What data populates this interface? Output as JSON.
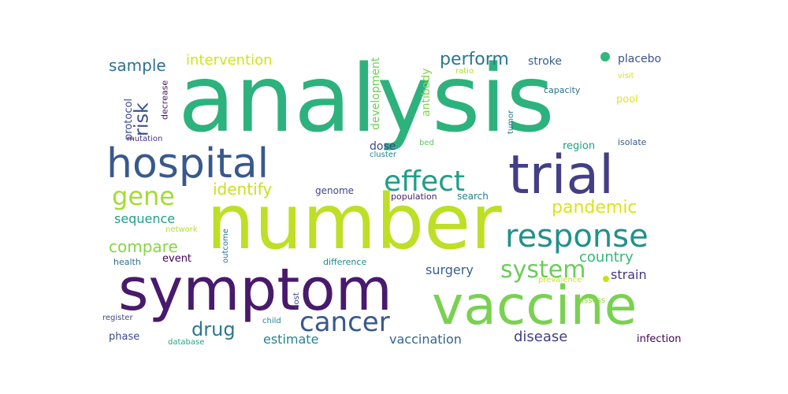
{
  "words": [
    {
      "text": "analysis",
      "color": "#2db27d"
    },
    {
      "text": "number",
      "color": "#bddf26"
    },
    {
      "text": "symptom",
      "color": "#481a6c"
    },
    {
      "text": "vaccine",
      "color": "#7ad151"
    },
    {
      "text": "trial",
      "color": "#433e85"
    },
    {
      "text": "hospital",
      "color": "#38598c"
    },
    {
      "text": "response",
      "color": "#21918c"
    },
    {
      "text": "effect",
      "color": "#1f9e89"
    },
    {
      "text": "cancer",
      "color": "#38588c"
    },
    {
      "text": "gene",
      "color": "#a5db36"
    },
    {
      "text": "system",
      "color": "#6ccd5a"
    },
    {
      "text": "perform",
      "color": "#2a788e"
    },
    {
      "text": "pandemic",
      "color": "#dde318"
    },
    {
      "text": "identify",
      "color": "#c8e020"
    },
    {
      "text": "compare",
      "color": "#86d549"
    },
    {
      "text": "sample",
      "color": "#2c728e"
    },
    {
      "text": "risk",
      "color": "#3b528b"
    },
    {
      "text": "intervention",
      "color": "#d2e21b"
    },
    {
      "text": "country",
      "color": "#35b779"
    },
    {
      "text": "drug",
      "color": "#2a788e"
    },
    {
      "text": "sequence",
      "color": "#1fa088"
    },
    {
      "text": "surgery",
      "color": "#355f8d"
    },
    {
      "text": "disease",
      "color": "#433e85"
    },
    {
      "text": "estimate",
      "color": "#25848e"
    },
    {
      "text": "vaccination",
      "color": "#32648e"
    },
    {
      "text": "strain",
      "color": "#453781"
    },
    {
      "text": "development",
      "color": "#6ece58"
    },
    {
      "text": "antibody",
      "color": "#7fd34e"
    },
    {
      "text": "protocol",
      "color": "#3e4a89"
    },
    {
      "text": "decrease",
      "color": "#471365"
    },
    {
      "text": "stroke",
      "color": "#355f8d"
    },
    {
      "text": "placebo",
      "color": "#3b528b"
    },
    {
      "text": "visit",
      "color": "#d8e219"
    },
    {
      "text": "capacity",
      "color": "#2d708e"
    },
    {
      "text": "ratio",
      "color": "#addc30"
    },
    {
      "text": "pool",
      "color": "#e5e419"
    },
    {
      "text": "tumor",
      "color": "#2a788e"
    },
    {
      "text": "mutation",
      "color": "#46327e"
    },
    {
      "text": "dose",
      "color": "#3e4989"
    },
    {
      "text": "cluster",
      "color": "#26828e"
    },
    {
      "text": "bed",
      "color": "#5ec962"
    },
    {
      "text": "region",
      "color": "#1fa187"
    },
    {
      "text": "isolate",
      "color": "#38598c"
    },
    {
      "text": "genome",
      "color": "#414487"
    },
    {
      "text": "population",
      "color": "#481b6d"
    },
    {
      "text": "search",
      "color": "#26828e"
    },
    {
      "text": "network",
      "color": "#b5de2b"
    },
    {
      "text": "outcome",
      "color": "#2c738e"
    },
    {
      "text": "health",
      "color": "#2e6e8e"
    },
    {
      "text": "event",
      "color": "#440154"
    },
    {
      "text": "difference",
      "color": "#23888e"
    },
    {
      "text": "prevalence",
      "color": "#d0e11c"
    },
    {
      "text": "assess",
      "color": "#90d743"
    },
    {
      "text": "cost",
      "color": "#404688"
    },
    {
      "text": "register",
      "color": "#3f4788"
    },
    {
      "text": "child",
      "color": "#24868e"
    },
    {
      "text": "phase",
      "color": "#3e4989"
    },
    {
      "text": "database",
      "color": "#22a884"
    },
    {
      "text": "infection",
      "color": "#440154"
    }
  ]
}
